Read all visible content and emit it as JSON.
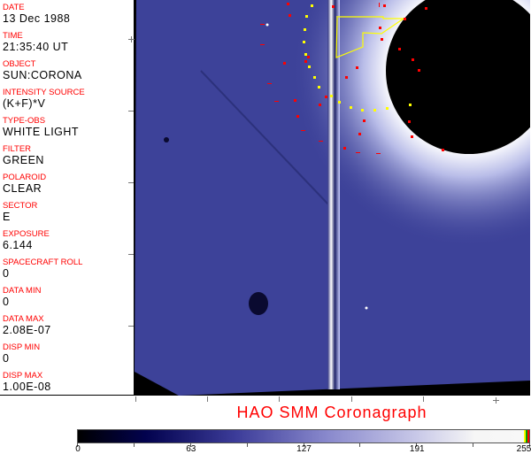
{
  "header_fields": [
    {
      "label": "DATE",
      "value": "13 Dec 1988"
    },
    {
      "label": "TIME",
      "value": "21:35:40 UT"
    },
    {
      "label": "OBJECT",
      "value": "SUN:CORONA"
    },
    {
      "label": "INTENSITY SOURCE",
      "value": "(K+F)*V"
    },
    {
      "label": "TYPE-OBS",
      "value": "WHITE LIGHT"
    },
    {
      "label": "FILTER",
      "value": "GREEN"
    },
    {
      "label": "POLAROID",
      "value": "CLEAR"
    },
    {
      "label": "SECTOR",
      "value": "E"
    },
    {
      "label": "EXPOSURE",
      "value": "6.144"
    },
    {
      "label": "SPACECRAFT ROLL",
      "value": "0"
    },
    {
      "label": "DATA MIN",
      "value": "0"
    },
    {
      "label": "DATA MAX",
      "value": "2.08E-07"
    },
    {
      "label": "DISP MIN",
      "value": "0"
    },
    {
      "label": "DISP MAX",
      "value": "1.00E-08"
    }
  ],
  "title": "HAO  SMM Coronagraph",
  "colorbar": {
    "min": 0,
    "max": 255,
    "tick_labels": [
      "0",
      "63",
      "127",
      "191",
      "255"
    ],
    "colors": {
      "low": "#000000",
      "mid": "#3c3c99",
      "high": "#f8f8f8"
    }
  },
  "colors": {
    "label": "#ff0000",
    "overlay_red": "#ff0000",
    "overlay_yellow": "#ffff00",
    "corona": "#3a3f9a"
  }
}
